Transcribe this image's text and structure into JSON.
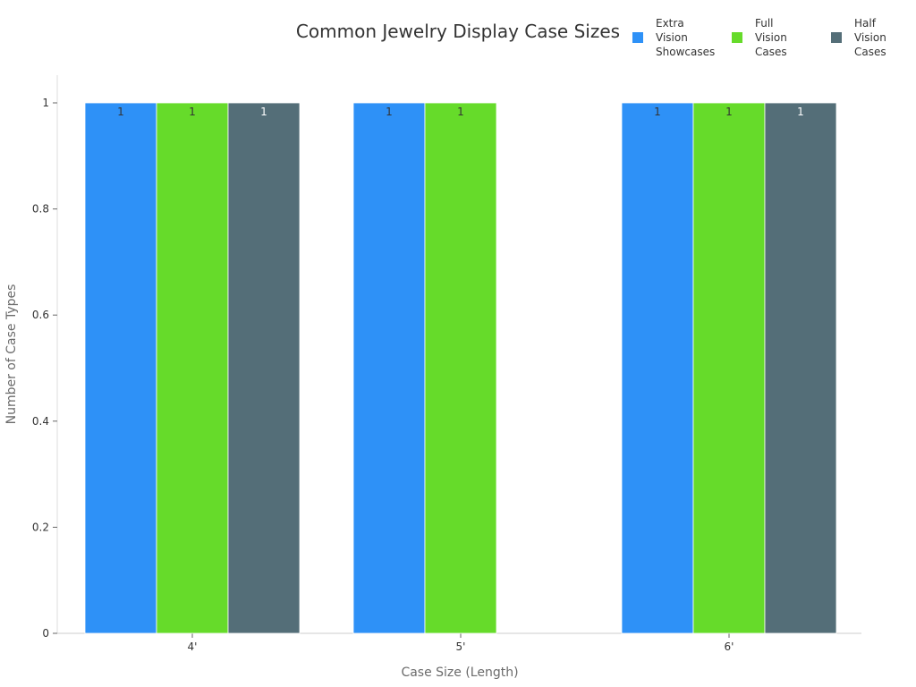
{
  "chart_data": {
    "type": "bar",
    "title": "Common Jewelry Display Case Sizes",
    "xlabel": "Case Size (Length)",
    "ylabel": "Number of Case Types",
    "categories": [
      "4'",
      "5'",
      "6'"
    ],
    "series": [
      {
        "name": "Extra Vision Showcases",
        "legend_lines": [
          "Extra",
          "Vision",
          "Showcases"
        ],
        "color": "#2e91f7",
        "label_color": "#333333",
        "values": [
          1,
          1,
          1
        ]
      },
      {
        "name": "Full Vision Cases",
        "legend_lines": [
          "Full",
          "Vision",
          "Cases"
        ],
        "color": "#66db2a",
        "label_color": "#333333",
        "values": [
          1,
          1,
          1
        ]
      },
      {
        "name": "Half Vision Cases",
        "legend_lines": [
          "Half",
          "Vision",
          "Cases"
        ],
        "color": "#546e78",
        "label_color": "#ffffff",
        "values": [
          1,
          null,
          1
        ]
      }
    ],
    "ylim": [
      0,
      1.05
    ],
    "yticks": [
      0,
      0.2,
      0.4,
      0.6,
      0.8,
      1
    ],
    "ytick_labels": [
      "0",
      "0.2",
      "0.4",
      "0.6",
      "0.8",
      "1"
    ],
    "data_labels": true,
    "grid": false,
    "legend_position": "top-right"
  }
}
